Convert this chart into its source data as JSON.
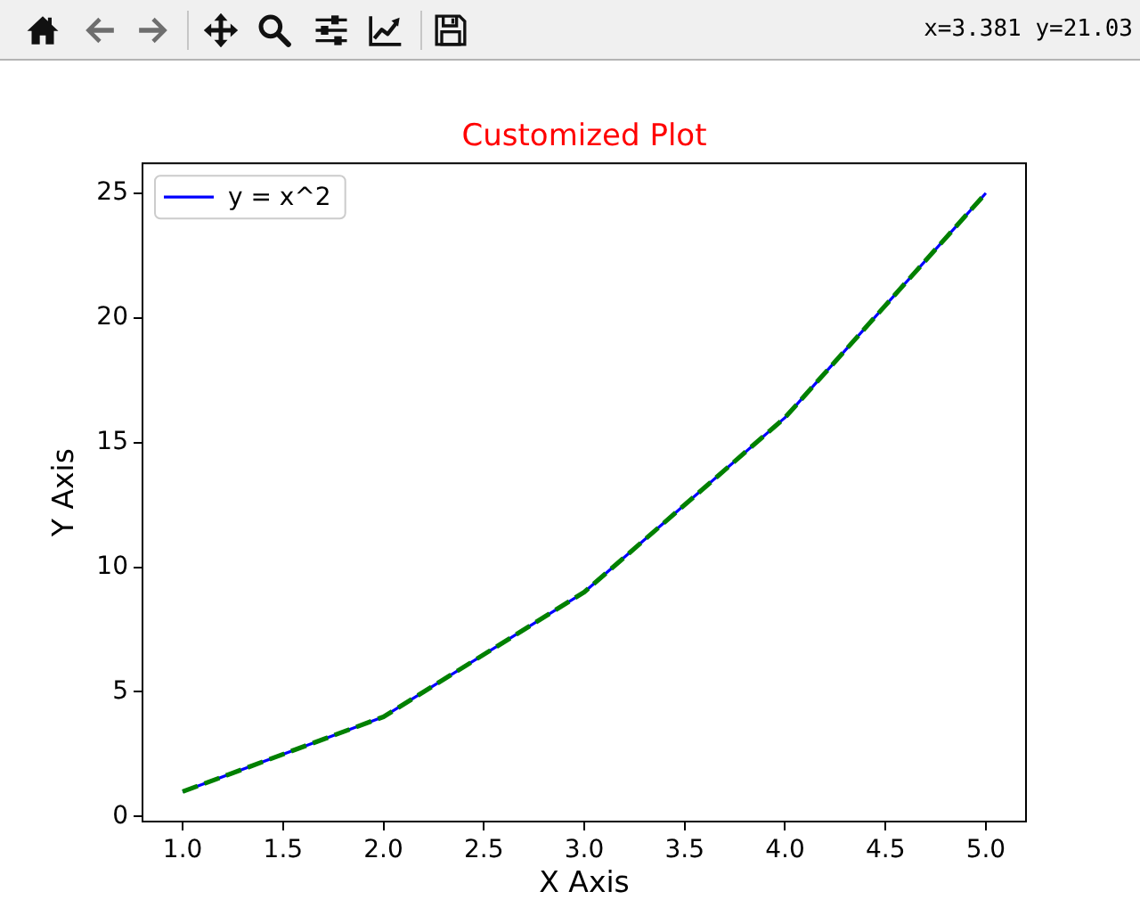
{
  "chart_data": {
    "type": "line",
    "title": "Customized Plot",
    "xlabel": "X Axis",
    "ylabel": "Y Axis",
    "x": [
      1,
      2,
      3,
      4,
      5
    ],
    "series": [
      {
        "name": "y = x^2",
        "color": "#0000ff",
        "values": [
          1,
          4,
          9,
          16,
          25
        ],
        "line_style": "solid"
      },
      {
        "color": "#008000",
        "values": [
          1,
          4,
          9,
          16,
          25
        ],
        "line_style": "dashed"
      }
    ],
    "xlim": [
      0.8,
      5.2
    ],
    "xticks": [
      {
        "value": 1,
        "label": "1.0"
      },
      {
        "value": 1.5,
        "label": "1.5"
      },
      {
        "value": 2,
        "label": "2.0"
      },
      {
        "value": 2.5,
        "label": "2.5"
      },
      {
        "value": 3,
        "label": "3.0"
      },
      {
        "value": 3.5,
        "label": "3.5"
      },
      {
        "value": 4,
        "label": "4.0"
      },
      {
        "value": 4.5,
        "label": "4.5"
      },
      {
        "value": 5,
        "label": "5.0"
      }
    ],
    "ylim": [
      -0.2,
      26.2
    ],
    "yticks": [
      0,
      5,
      10,
      15,
      20,
      25
    ],
    "grid": false,
    "legend": "top left",
    "marker": "none",
    "annotations": [
      "x=3.381 y=21.03"
    ]
  }
}
